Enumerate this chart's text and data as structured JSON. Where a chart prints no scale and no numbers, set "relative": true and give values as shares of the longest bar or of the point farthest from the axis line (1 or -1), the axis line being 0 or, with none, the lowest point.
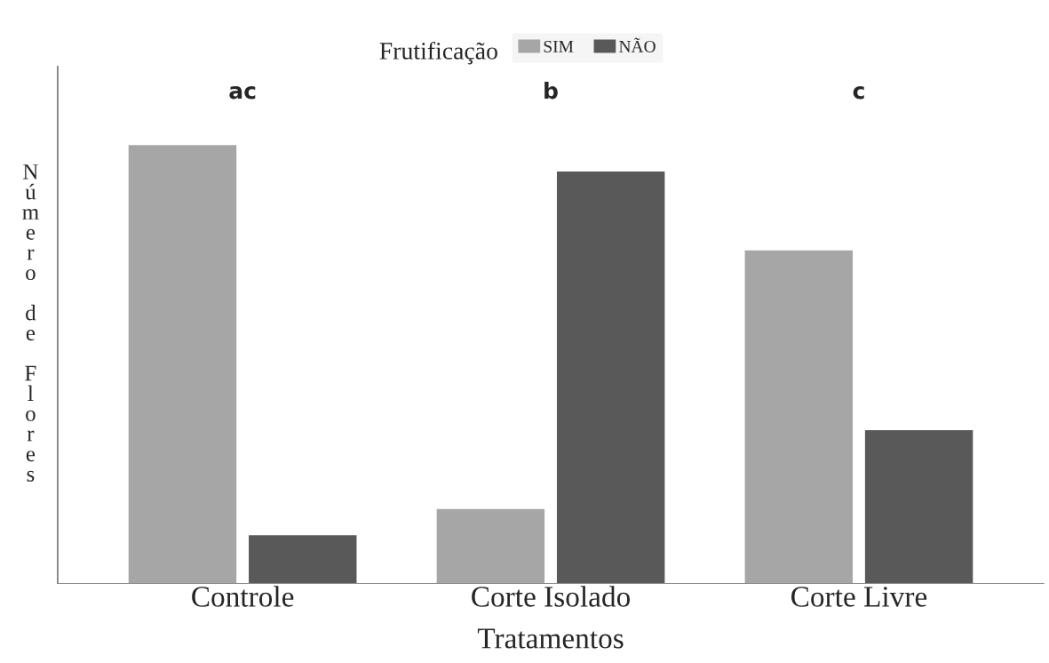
{
  "chart_data": {
    "type": "bar",
    "relative": true,
    "xlabel": "Tratamentos",
    "ylabel": "Número de Flores",
    "legend_title": "Frutificação",
    "legend": "top",
    "categories": [
      "Controle",
      "Corte Isolado",
      "Corte Livre"
    ],
    "series": [
      {
        "name": "SIM",
        "color": "#a6a6a6",
        "values": [
          1,
          0.17,
          0.76
        ]
      },
      {
        "name": "NÃO",
        "color": "#595959",
        "values": [
          0.11,
          0.94,
          0.35
        ]
      }
    ],
    "annotations": [
      "ac",
      "b",
      "c"
    ],
    "grid": false
  }
}
